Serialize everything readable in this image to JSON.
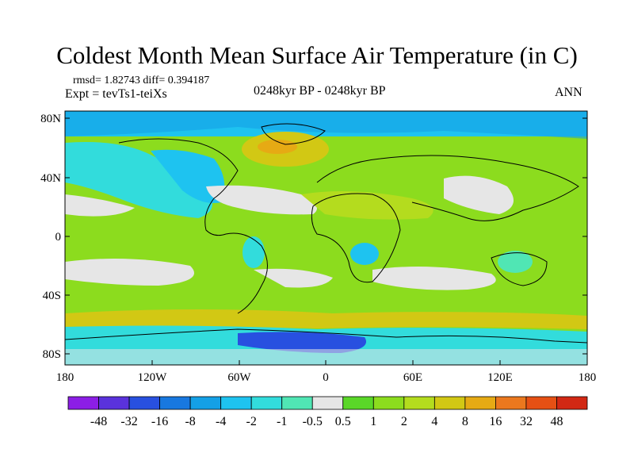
{
  "title": "Coldest Month Mean Surface Air Temperature (in C)",
  "stats": "rmsd= 1.82743 diff= 0.394187",
  "experiment": "Expt = tevTs1-teiXs",
  "period": "0248kyr BP - 0248kyr BP",
  "season": "ANN",
  "lat_ticks": [
    "80N",
    "40N",
    "0",
    "40S",
    "80S"
  ],
  "lon_ticks": [
    "180",
    "120W",
    "60W",
    "0",
    "60E",
    "120E",
    "180"
  ],
  "colorbar": {
    "labels": [
      "-48",
      "-32",
      "-16",
      "-8",
      "-4",
      "-2",
      "-1",
      "-0.5",
      "0.5",
      "1",
      "2",
      "4",
      "8",
      "16",
      "32",
      "48"
    ],
    "colors": [
      "#8c1ee6",
      "#5a32dc",
      "#2850e0",
      "#1878e0",
      "#14a0e6",
      "#1ec3f0",
      "#32dcdc",
      "#50e6b4",
      "#e6e6e6",
      "#5ad728",
      "#8cdc1e",
      "#b4dc1e",
      "#d2c814",
      "#e6aa14",
      "#eb781e",
      "#e65014",
      "#d22814"
    ]
  },
  "colors": {
    "ocean_base": "#8cdc1e",
    "neutral": "#e6e6e6",
    "coastline": "#000000"
  }
}
